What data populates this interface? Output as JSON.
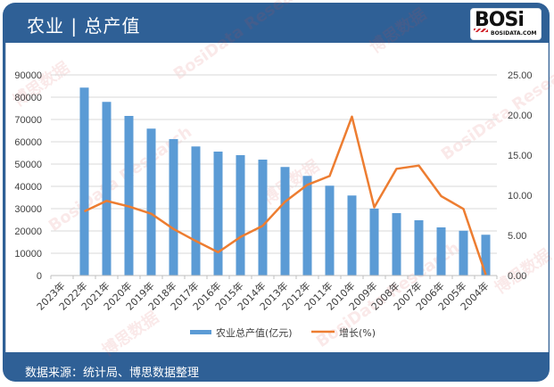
{
  "header": {
    "title": "农业 | 总产值",
    "logo_main": "BOSi",
    "logo_sub": "BOSIDATA.COM"
  },
  "footer": {
    "source": "数据来源：统计局、博思数据整理"
  },
  "watermarks": [
    "博思数据",
    "BosiData Research"
  ],
  "colors": {
    "frame": "#2f6096",
    "bar": "#5b9bd5",
    "line": "#ed7d31",
    "grid": "#d9d9d9",
    "axis_text": "#404040"
  },
  "chart_data": {
    "type": "bar+line",
    "title": "农业 | 总产值",
    "categories": [
      "2023年",
      "2022年",
      "2021年",
      "2020年",
      "2019年",
      "2018年",
      "2017年",
      "2016年",
      "2015年",
      "2014年",
      "2013年",
      "2012年",
      "2011年",
      "2010年",
      "2009年",
      "2008年",
      "2007年",
      "2006年",
      "2005年",
      "2004年"
    ],
    "series": [
      {
        "name": "农业总产值(亿元)",
        "type": "bar",
        "axis": "left",
        "values": [
          null,
          84300,
          77900,
          71600,
          65900,
          61200,
          57900,
          55600,
          54000,
          52000,
          48700,
          44700,
          40300,
          35900,
          30000,
          28000,
          24800,
          21600,
          20100,
          18300
        ]
      },
      {
        "name": "增长(%)",
        "type": "line",
        "axis": "right",
        "values": [
          null,
          8.0,
          9.3,
          8.6,
          7.7,
          5.8,
          4.3,
          2.9,
          4.8,
          6.2,
          9.2,
          11.3,
          12.4,
          19.8,
          8.5,
          13.3,
          13.7,
          9.9,
          8.3,
          0.1
        ]
      }
    ],
    "y_left": {
      "min": 0,
      "max": 90000,
      "step": 10000,
      "ticks": [
        "0",
        "10000",
        "20000",
        "30000",
        "40000",
        "50000",
        "60000",
        "70000",
        "80000",
        "90000"
      ]
    },
    "y_right": {
      "min": 0,
      "max": 25,
      "step": 5,
      "ticks": [
        "0.00",
        "5.00",
        "10.00",
        "15.00",
        "20.00",
        "25.00"
      ]
    },
    "xlabel": "",
    "ylabel": "",
    "grid": true,
    "legend_position": "bottom",
    "legend": [
      "农业总产值(亿元)",
      "增长(%)"
    ]
  }
}
